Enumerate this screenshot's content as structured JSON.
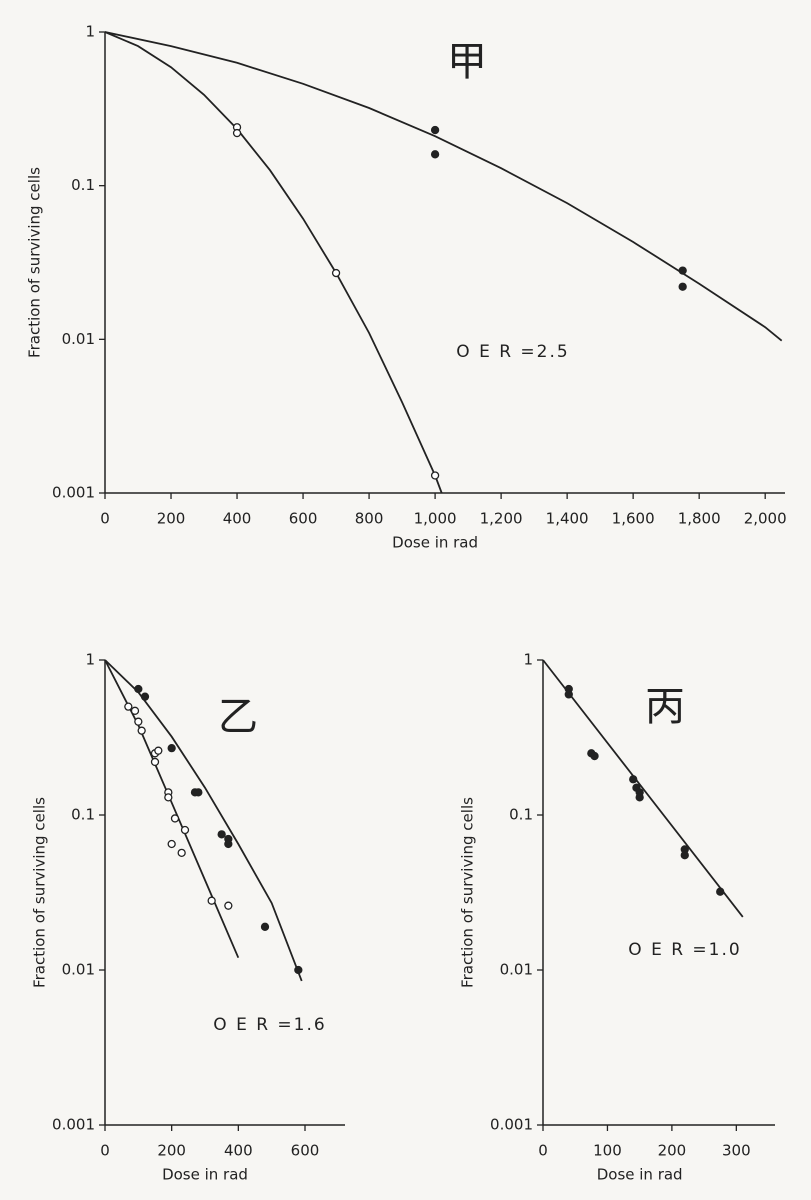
{
  "chart_data": [
    {
      "type": "scatter",
      "title": "甲",
      "annotation": "O E R =2.5",
      "xlabel": "Dose in rad",
      "ylabel": "Fraction of surviving cells",
      "log_y": true,
      "xlim": [
        0,
        2060
      ],
      "ylim": [
        0.001,
        1
      ],
      "xticks": [
        0,
        200,
        400,
        600,
        800,
        {
          "value": 1000,
          "label": "1,000"
        },
        {
          "value": 1200,
          "label": "1,200"
        },
        {
          "value": 1400,
          "label": "1,400"
        },
        {
          "value": 1600,
          "label": "1,600"
        },
        {
          "value": 1800,
          "label": "1,800"
        },
        {
          "value": 2000,
          "label": "2,000"
        }
      ],
      "yticks": [
        1,
        0.1,
        0.01,
        0.001
      ],
      "series": [
        {
          "style": "line",
          "color": "#222222",
          "x": [
            0,
            200,
            400,
            600,
            800,
            1000,
            1200,
            1400,
            1600,
            1800,
            2000,
            2050
          ],
          "values": [
            1,
            0.81,
            0.63,
            0.46,
            0.32,
            0.21,
            0.13,
            0.077,
            0.043,
            0.023,
            0.012,
            0.0098
          ]
        },
        {
          "style": "line",
          "color": "#222222",
          "x": [
            0,
            100,
            200,
            300,
            400,
            500,
            600,
            700,
            800,
            900,
            1000,
            1020
          ],
          "values": [
            1,
            0.81,
            0.59,
            0.39,
            0.234,
            0.126,
            0.061,
            0.027,
            0.011,
            0.0039,
            0.0013,
            0.001
          ]
        },
        {
          "style": "points",
          "marker": "filled",
          "color": "#222222",
          "x": [
            1000,
            1000,
            1750,
            1750
          ],
          "values": [
            0.23,
            0.16,
            0.028,
            0.022
          ]
        },
        {
          "style": "points",
          "marker": "open",
          "color": "#222222",
          "x": [
            400,
            400,
            700,
            1000
          ],
          "values": [
            0.24,
            0.22,
            0.027,
            0.0013
          ]
        }
      ]
    },
    {
      "type": "scatter",
      "title": "乙",
      "annotation": "O E R =1.6",
      "xlabel": "Dose in rad",
      "ylabel": "Fraction of surviving cells",
      "log_y": true,
      "xlim": [
        0,
        720
      ],
      "ylim": [
        0.001,
        1
      ],
      "xticks": [
        0,
        200,
        400,
        600
      ],
      "yticks": [
        1,
        0.1,
        0.01,
        0.001
      ],
      "series": [
        {
          "style": "line",
          "color": "#222222",
          "x": [
            0,
            100,
            200,
            300,
            400,
            500,
            590
          ],
          "values": [
            1,
            0.62,
            0.32,
            0.15,
            0.065,
            0.027,
            0.0085
          ]
        },
        {
          "style": "line",
          "color": "#222222",
          "x": [
            0,
            100,
            200,
            300,
            400
          ],
          "values": [
            1,
            0.38,
            0.12,
            0.038,
            0.012
          ]
        },
        {
          "style": "points",
          "marker": "filled",
          "color": "#222222",
          "x": [
            100,
            120,
            200,
            270,
            280,
            350,
            370,
            370,
            480,
            580
          ],
          "values": [
            0.65,
            0.58,
            0.27,
            0.14,
            0.14,
            0.075,
            0.065,
            0.07,
            0.019,
            0.01
          ]
        },
        {
          "style": "points",
          "marker": "open",
          "color": "#222222",
          "x": [
            70,
            90,
            100,
            110,
            150,
            160,
            150,
            190,
            190,
            200,
            210,
            230,
            240,
            320,
            370
          ],
          "values": [
            0.5,
            0.47,
            0.4,
            0.35,
            0.25,
            0.26,
            0.22,
            0.14,
            0.13,
            0.065,
            0.095,
            0.057,
            0.08,
            0.028,
            0.026
          ]
        }
      ]
    },
    {
      "type": "scatter",
      "title": "丙",
      "annotation": "O E R =1.0",
      "xlabel": "Dose in rad",
      "ylabel": "Fraction of surviving cells",
      "log_y": true,
      "xlim": [
        0,
        360
      ],
      "ylim": [
        0.001,
        1
      ],
      "xticks": [
        0,
        100,
        200,
        300
      ],
      "yticks": [
        1,
        0.1,
        0.01,
        0.001
      ],
      "series": [
        {
          "style": "line",
          "color": "#222222",
          "x": [
            0,
            310
          ],
          "values": [
            1,
            0.022
          ]
        },
        {
          "style": "points",
          "marker": "filled",
          "color": "#222222",
          "x": [
            40,
            40,
            75,
            80,
            140,
            145,
            150,
            150,
            220,
            220,
            275
          ],
          "values": [
            0.65,
            0.6,
            0.25,
            0.24,
            0.17,
            0.15,
            0.14,
            0.13,
            0.06,
            0.055,
            0.032
          ]
        }
      ]
    }
  ]
}
